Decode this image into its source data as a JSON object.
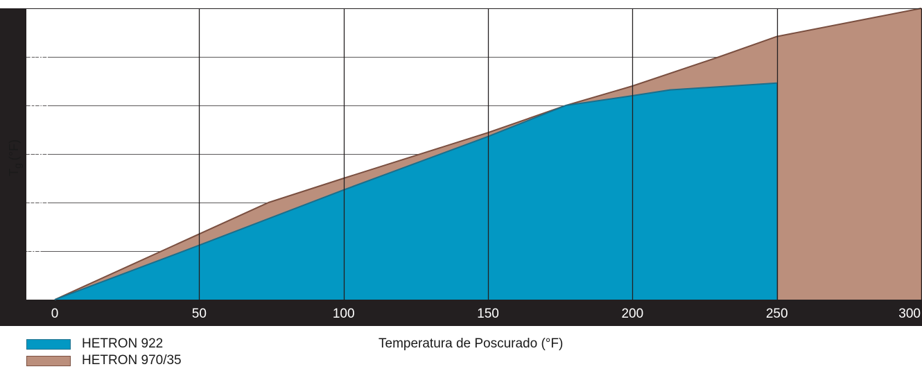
{
  "chart_data": {
    "type": "area",
    "xlabel": "Temperatura de Poscurado (°F)",
    "ylabel": "T",
    "ylabel_subscript": "g",
    "ylabel_unit": "(°F)",
    "xlim": [
      0,
      300
    ],
    "ylim": [
      0,
      300
    ],
    "x_ticks": [
      "0",
      "50",
      "100",
      "150",
      "200",
      "250",
      "300"
    ],
    "y_ticks": [
      "0",
      "50",
      "100",
      "150",
      "200",
      "250",
      "300"
    ],
    "grid": true,
    "legend_position": "bottom-left",
    "series": [
      {
        "name": "HETRON 970/35",
        "color": "#bb8f7c",
        "edge_color": "#7a4f40",
        "x": [
          0,
          74,
          100,
          150,
          177,
          200,
          230,
          250,
          300
        ],
        "y": [
          0,
          100,
          125,
          172,
          200,
          220,
          250,
          271,
          300
        ]
      },
      {
        "name": "HETRON 922",
        "color": "#0398c3",
        "edge_color": "#1a6f8c",
        "x": [
          0,
          50,
          100,
          150,
          177,
          200,
          213,
          250
        ],
        "y": [
          0,
          56,
          113,
          168,
          200,
          210,
          216,
          223
        ]
      }
    ]
  },
  "legend": {
    "items": [
      {
        "label": "HETRON 922"
      },
      {
        "label": "HETRON 970/35"
      }
    ]
  }
}
